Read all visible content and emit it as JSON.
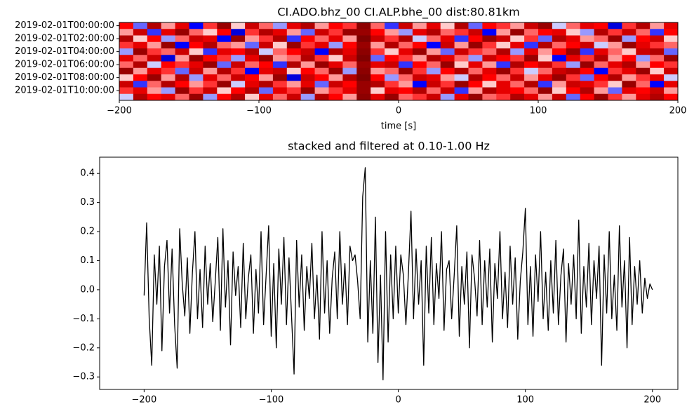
{
  "chart_data": [
    {
      "type": "heatmap",
      "title": "CI.ADO.bhz_00 CI.ALP.bhe_00  dist:80.81km",
      "xlabel": "time [s]",
      "xlim": [
        -200,
        200
      ],
      "xticks": [
        {
          "value": -200,
          "label": "−200"
        },
        {
          "value": -100,
          "label": "−100"
        },
        0,
        100,
        200
      ],
      "categories": [
        "2019-02-01T00:00:00",
        null,
        "2019-02-01T02:00:00",
        null,
        "2019-02-01T04:00:00",
        null,
        "2019-02-01T06:00:00",
        null,
        "2019-02-01T08:00:00",
        null,
        "2019-02-01T10:00:00",
        null
      ],
      "zlim": [
        -1,
        1
      ],
      "colormap": "seismic",
      "values": [
        [
          0.5,
          -0.3,
          0.8,
          0.2,
          0.6,
          -0.5,
          0.4,
          0.9,
          0.1,
          0.7,
          0.3,
          -0.2,
          0.6,
          0.8,
          0.2,
          0.5,
          0.4,
          0.95,
          0.3,
          -0.4,
          0.7,
          0.2,
          0.6,
          0.1,
          0.8,
          -0.3,
          0.5,
          0.4,
          0.2,
          0.7,
          0.9,
          -0.1,
          0.3,
          0.6,
          0.5,
          -0.6,
          0.4,
          0.8,
          0.2,
          0.6
        ],
        [
          0.2,
          0.7,
          -0.4,
          0.6,
          0.9,
          0.3,
          0.1,
          0.5,
          -0.6,
          0.4,
          0.8,
          0.6,
          0.2,
          -0.3,
          0.7,
          0.4,
          0.9,
          0.9,
          0.5,
          0.2,
          -0.2,
          0.6,
          0.8,
          0.3,
          0.4,
          0.7,
          -0.5,
          0.2,
          0.9,
          0.3,
          0.5,
          0.6,
          0.1,
          -0.2,
          0.8,
          0.4,
          0.7,
          0.3,
          -0.4,
          0.5
        ],
        [
          0.8,
          0.1,
          0.5,
          -0.2,
          0.3,
          0.7,
          0.6,
          -0.5,
          0.9,
          0.2,
          0.4,
          0.8,
          -0.4,
          0.5,
          0.3,
          0.6,
          0.2,
          1.0,
          0.7,
          0.4,
          0.8,
          -0.1,
          0.3,
          0.6,
          -0.4,
          0.5,
          0.9,
          0.7,
          0.1,
          0.4,
          -0.3,
          0.8,
          0.6,
          0.2,
          0.3,
          0.9,
          -0.2,
          0.5,
          0.7,
          0.1
        ],
        [
          0.4,
          0.6,
          0.2,
          0.9,
          -0.5,
          0.5,
          0.8,
          0.3,
          0.2,
          -0.3,
          0.7,
          0.1,
          0.9,
          0.4,
          0.6,
          -0.2,
          0.5,
          0.9,
          0.2,
          0.8,
          0.3,
          0.5,
          -0.5,
          0.7,
          0.2,
          0.9,
          0.4,
          0.1,
          0.6,
          -0.4,
          0.8,
          0.3,
          0.5,
          0.7,
          -0.1,
          0.2,
          0.9,
          0.6,
          0.4,
          0.3
        ],
        [
          -0.2,
          0.9,
          0.4,
          0.3,
          0.7,
          0.1,
          -0.4,
          0.6,
          0.5,
          0.8,
          -0.1,
          0.3,
          0.5,
          0.7,
          -0.5,
          0.8,
          0.6,
          0.95,
          0.4,
          0.1,
          0.6,
          0.9,
          0.2,
          -0.3,
          0.7,
          0.4,
          0.3,
          0.8,
          -0.2,
          0.6,
          0.2,
          0.5,
          0.9,
          -0.4,
          0.6,
          0.3,
          0.1,
          0.7,
          0.8,
          -0.3
        ],
        [
          0.6,
          0.3,
          0.7,
          -0.6,
          0.2,
          0.9,
          0.5,
          0.4,
          -0.2,
          0.6,
          0.9,
          0.2,
          0.3,
          0.8,
          0.4,
          0.1,
          0.7,
          1.0,
          -0.3,
          0.5,
          0.4,
          0.2,
          0.8,
          0.6,
          0.3,
          -0.2,
          0.7,
          0.5,
          0.4,
          0.9,
          0.1,
          -0.5,
          0.6,
          0.4,
          0.8,
          0.2,
          0.5,
          -0.2,
          0.3,
          0.9
        ],
        [
          0.3,
          0.8,
          -0.1,
          0.5,
          0.4,
          0.6,
          0.9,
          -0.3,
          0.7,
          0.3,
          0.5,
          -0.4,
          0.8,
          0.2,
          0.9,
          0.6,
          0.3,
          0.9,
          0.6,
          0.7,
          -0.4,
          0.5,
          0.3,
          0.9,
          0.1,
          0.6,
          0.2,
          -0.4,
          0.8,
          0.5,
          0.7,
          0.4,
          -0.2,
          0.9,
          0.3,
          0.6,
          0.8,
          0.2,
          0.5,
          0.4
        ],
        [
          0.9,
          0.2,
          0.6,
          0.4,
          -0.3,
          0.7,
          0.2,
          0.8,
          0.4,
          -0.5,
          0.6,
          0.7,
          0.1,
          0.5,
          0.3,
          0.9,
          -0.2,
          0.95,
          0.2,
          0.3,
          0.9,
          0.4,
          -0.2,
          0.5,
          0.8,
          0.3,
          0.6,
          0.9,
          0.4,
          -0.1,
          0.3,
          0.7,
          0.8,
          0.5,
          -0.5,
          0.4,
          0.6,
          0.9,
          0.1,
          0.7
        ],
        [
          0.1,
          0.5,
          0.9,
          0.2,
          0.8,
          -0.2,
          0.6,
          0.3,
          0.7,
          0.5,
          0.2,
          0.9,
          -0.6,
          0.7,
          0.5,
          0.2,
          0.8,
          1.0,
          0.5,
          -0.2,
          0.3,
          0.7,
          0.6,
          0.2,
          -0.1,
          0.8,
          0.5,
          0.3,
          0.7,
          0.2,
          0.6,
          0.9,
          0.4,
          -0.3,
          0.5,
          0.8,
          0.2,
          0.4,
          0.6,
          -0.1
        ],
        [
          0.7,
          -0.4,
          0.3,
          0.8,
          0.5,
          0.2,
          0.4,
          0.9,
          -0.1,
          0.6,
          0.8,
          0.4,
          0.2,
          0.6,
          -0.3,
          0.7,
          0.5,
          0.9,
          0.8,
          0.4,
          0.2,
          -0.5,
          0.7,
          0.4,
          0.9,
          0.5,
          0.1,
          0.6,
          0.3,
          0.8,
          -0.4,
          0.2,
          0.7,
          0.6,
          0.4,
          0.1,
          0.9,
          0.3,
          -0.5,
          0.6
        ],
        [
          0.4,
          0.6,
          0.2,
          -0.2,
          0.9,
          0.4,
          0.7,
          0.1,
          0.5,
          0.8,
          -0.3,
          0.6,
          0.4,
          0.9,
          0.2,
          0.4,
          0.6,
          0.9,
          0.1,
          0.6,
          0.5,
          0.8,
          0.3,
          0.7,
          -0.4,
          0.2,
          0.8,
          0.6,
          0.5,
          0.3,
          0.9,
          0.1,
          0.5,
          0.8,
          0.2,
          -0.3,
          0.6,
          0.5,
          0.7,
          0.2
        ],
        [
          -0.1,
          0.8,
          0.5,
          0.6,
          0.3,
          0.9,
          -0.2,
          0.5,
          0.8,
          0.1,
          0.6,
          0.3,
          0.7,
          -0.2,
          0.8,
          0.5,
          0.2,
          0.95,
          0.6,
          0.9,
          0.3,
          0.4,
          0.7,
          -0.2,
          0.6,
          0.9,
          0.3,
          0.4,
          0.8,
          0.6,
          0.2,
          0.7,
          -0.3,
          0.5,
          0.9,
          0.4,
          0.2,
          0.6,
          0.8,
          0.5
        ]
      ]
    },
    {
      "type": "line",
      "title": "stacked and filtered at 0.10-1.00 Hz",
      "color": "#000000",
      "xlim": [
        -235,
        220
      ],
      "xticks": [
        {
          "value": -200,
          "label": "−200"
        },
        {
          "value": -100,
          "label": "−100"
        },
        0,
        100,
        200
      ],
      "ylim": [
        -0.343,
        0.456
      ],
      "yticks": [
        {
          "value": -0.3,
          "label": "−0.3"
        },
        {
          "value": -0.2,
          "label": "−0.2"
        },
        {
          "value": -0.1,
          "label": "−0.1"
        },
        {
          "value": 0,
          "label": "0.0"
        },
        0.1,
        0.2,
        0.3,
        0.4
      ],
      "x": [
        -200,
        -198,
        -196,
        -194,
        -192,
        -190,
        -188,
        -186,
        -184,
        -182,
        -180,
        -178,
        -176,
        -174,
        -172,
        -170,
        -168,
        -166,
        -164,
        -162,
        -160,
        -158,
        -156,
        -154,
        -152,
        -150,
        -148,
        -146,
        -144,
        -142,
        -140,
        -138,
        -136,
        -134,
        -132,
        -130,
        -128,
        -126,
        -124,
        -122,
        -120,
        -118,
        -116,
        -114,
        -112,
        -110,
        -108,
        -106,
        -104,
        -102,
        -100,
        -98,
        -96,
        -94,
        -92,
        -90,
        -88,
        -86,
        -84,
        -82,
        -80,
        -78,
        -76,
        -74,
        -72,
        -70,
        -68,
        -66,
        -64,
        -62,
        -60,
        -58,
        -56,
        -54,
        -52,
        -50,
        -48,
        -46,
        -44,
        -42,
        -40,
        -38,
        -36,
        -34,
        -32,
        -30,
        -28,
        -26,
        -24,
        -22,
        -20,
        -18,
        -16,
        -14,
        -12,
        -10,
        -8,
        -6,
        -4,
        -2,
        0,
        2,
        4,
        6,
        8,
        10,
        12,
        14,
        16,
        18,
        20,
        22,
        24,
        26,
        28,
        30,
        32,
        34,
        36,
        38,
        40,
        42,
        44,
        46,
        48,
        50,
        52,
        54,
        56,
        58,
        60,
        62,
        64,
        66,
        68,
        70,
        72,
        74,
        76,
        78,
        80,
        82,
        84,
        86,
        88,
        90,
        92,
        94,
        96,
        98,
        100,
        102,
        104,
        106,
        108,
        110,
        112,
        114,
        116,
        118,
        120,
        122,
        124,
        126,
        128,
        130,
        132,
        134,
        136,
        138,
        140,
        142,
        144,
        146,
        148,
        150,
        152,
        154,
        156,
        158,
        160,
        162,
        164,
        166,
        168,
        170,
        172,
        174,
        176,
        178,
        180,
        182,
        184,
        186,
        188,
        190,
        192,
        194,
        196,
        198,
        200
      ],
      "values": [
        -0.02,
        0.23,
        -0.1,
        -0.26,
        0.12,
        -0.05,
        0.15,
        -0.21,
        0.08,
        0.17,
        -0.08,
        0.14,
        -0.12,
        -0.27,
        0.21,
        0.02,
        -0.09,
        0.11,
        -0.15,
        0.06,
        0.2,
        -0.1,
        0.07,
        -0.13,
        0.15,
        -0.05,
        0.09,
        -0.11,
        0.03,
        0.18,
        -0.14,
        0.21,
        -0.06,
        0.1,
        -0.19,
        0.13,
        -0.02,
        0.08,
        -0.13,
        0.16,
        -0.1,
        0.04,
        0.12,
        -0.15,
        0.07,
        -0.08,
        0.2,
        -0.12,
        0.05,
        0.22,
        -0.16,
        0.09,
        -0.2,
        0.14,
        -0.05,
        0.18,
        -0.12,
        0.11,
        -0.09,
        -0.29,
        0.17,
        -0.06,
        0.12,
        -0.14,
        0.08,
        -0.03,
        0.16,
        -0.1,
        0.05,
        -0.17,
        0.2,
        -0.08,
        0.1,
        -0.15,
        0.04,
        0.13,
        -0.1,
        0.2,
        -0.05,
        0.09,
        -0.12,
        0.15,
        0.1,
        0.12,
        0.03,
        -0.1,
        0.32,
        0.42,
        -0.18,
        0.1,
        -0.15,
        0.25,
        -0.25,
        0.05,
        -0.31,
        0.2,
        -0.18,
        0.12,
        -0.1,
        0.15,
        -0.08,
        0.12,
        0.05,
        -0.12,
        0.06,
        0.27,
        -0.1,
        0.14,
        -0.05,
        0.1,
        -0.26,
        0.15,
        -0.08,
        0.18,
        -0.12,
        0.09,
        -0.03,
        0.2,
        -0.14,
        0.07,
        0.1,
        -0.1,
        0.05,
        0.22,
        -0.16,
        0.08,
        -0.05,
        0.13,
        -0.2,
        0.12,
        0.04,
        -0.09,
        0.17,
        -0.12,
        0.1,
        -0.06,
        0.14,
        -0.18,
        0.09,
        -0.03,
        0.2,
        -0.1,
        0.06,
        -0.13,
        0.15,
        -0.05,
        0.11,
        -0.17,
        0.03,
        0.13,
        0.28,
        -0.12,
        0.08,
        -0.16,
        0.12,
        -0.04,
        0.2,
        -0.1,
        0.06,
        -0.14,
        0.1,
        -0.08,
        0.17,
        -0.12,
        0.05,
        0.14,
        -0.18,
        0.09,
        -0.05,
        0.12,
        -0.1,
        0.24,
        -0.15,
        0.08,
        -0.06,
        0.16,
        -0.12,
        0.1,
        -0.03,
        0.15,
        -0.26,
        0.12,
        -0.08,
        0.2,
        -0.1,
        0.05,
        -0.14,
        0.22,
        -0.06,
        0.1,
        -0.2,
        0.18,
        -0.12,
        0.08,
        -0.05,
        0.1,
        -0.08,
        0.04,
        -0.03,
        0.02,
        0.0
      ]
    }
  ]
}
